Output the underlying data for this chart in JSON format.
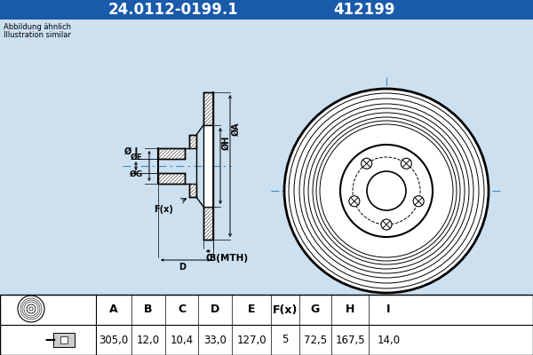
{
  "title_part": "24.0112-0199.1",
  "title_code": "412199",
  "title_bg": "#1a5aaa",
  "title_fg": "#ffffff",
  "subtitle1": "Abbildung ähnlich",
  "subtitle2": "Illustration similar",
  "bg_color": "#cce0f0",
  "table_headers": [
    "A",
    "B",
    "C",
    "D",
    "E",
    "F(x)",
    "G",
    "H",
    "I"
  ],
  "table_values": [
    "305,0",
    "12,0",
    "10,4",
    "33,0",
    "127,0",
    "5",
    "72,5",
    "167,5",
    "14,0"
  ],
  "line_color": "#000000",
  "hatch_color": "#555555",
  "dim_color": "#000000",
  "center_line_color": "#4488bb"
}
